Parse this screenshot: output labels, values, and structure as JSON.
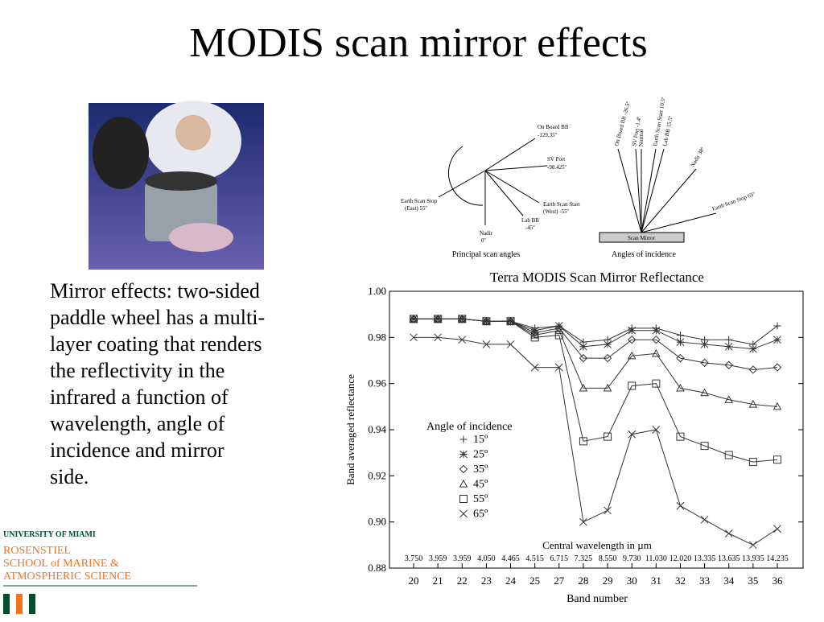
{
  "title": "MODIS scan mirror effects",
  "body_lines": [
    "Mirror effects: two-sided",
    "paddle wheel has a multi-",
    "layer coating that renders",
    "the reflectivity in the",
    "infrared a function of",
    "wavelength, angle of",
    "incidence and mirror",
    "side."
  ],
  "diagram_left": {
    "labels": [
      "On Board BB",
      "-129.35º",
      "SV Port",
      "-98.425º",
      "Earth Scan Start",
      "(West) -55º",
      "Lab BB",
      "-45º",
      "Nadir",
      "0º",
      "Earth Scan Stop",
      "(East) 55º"
    ],
    "caption": "Principal scan angles"
  },
  "diagram_right": {
    "labels": [
      "On Board BB -26.5º",
      "SV Port -1.4º",
      "Normal",
      "Earth Scan Start 10.5º",
      "Lab BB 15.5º",
      "Nadir 38º",
      "Earth Scan Stop 65º",
      "Scan Mirror"
    ],
    "caption": "Angles of incidence"
  },
  "logo": [
    "UNIVERSITY OF MIAMI",
    "ROSENSTIEL",
    "SCHOOL of MARINE &",
    "ATMOSPHERIC SCIENCE"
  ],
  "chart_data": {
    "type": "line",
    "title": "Terra MODIS Scan Mirror Reflectance",
    "x_label": "Band number",
    "y_label": "Band averaged reflectance",
    "wavelength_label": "Central wavelength in µm",
    "legend_title": "Angle of incidence",
    "categories": [
      "20",
      "21",
      "22",
      "23",
      "24",
      "25",
      "27",
      "28",
      "29",
      "30",
      "31",
      "32",
      "33",
      "34",
      "35",
      "36"
    ],
    "wavelengths": [
      "3.750",
      "3.959",
      "3.959",
      "4.050",
      "4.465",
      "4.515",
      "6.715",
      "7.325",
      "8.550",
      "9.730",
      "11.030",
      "12.020",
      "13.335",
      "13.635",
      "13.935",
      "14.235"
    ],
    "ylim": [
      0.88,
      1.0
    ],
    "yticks": [
      {
        "value": 0.88,
        "label": "0.88"
      },
      {
        "value": 0.9,
        "label": "0.90"
      },
      {
        "value": 0.92,
        "label": "0.92"
      },
      {
        "value": 0.94,
        "label": "0.94"
      },
      {
        "value": 0.96,
        "label": "0.96"
      },
      {
        "value": 0.98,
        "label": "0.98"
      },
      {
        "value": 1.0,
        "label": "1.00"
      }
    ],
    "series": [
      {
        "name": "15º",
        "color": "#333",
        "marker": "plus",
        "values": [
          0.988,
          0.988,
          0.988,
          0.987,
          0.987,
          0.984,
          0.985,
          0.978,
          0.979,
          0.984,
          0.984,
          0.981,
          0.979,
          0.979,
          0.977,
          0.985
        ]
      },
      {
        "name": "25º",
        "color": "#333",
        "marker": "star",
        "values": [
          0.988,
          0.988,
          0.988,
          0.987,
          0.987,
          0.983,
          0.985,
          0.976,
          0.977,
          0.983,
          0.983,
          0.978,
          0.977,
          0.976,
          0.975,
          0.979
        ]
      },
      {
        "name": "35º",
        "color": "#333",
        "marker": "diamond",
        "values": [
          0.988,
          0.988,
          0.988,
          0.987,
          0.987,
          0.982,
          0.984,
          0.971,
          0.971,
          0.979,
          0.979,
          0.971,
          0.969,
          0.968,
          0.966,
          0.967
        ]
      },
      {
        "name": "45º",
        "color": "#333",
        "marker": "triangle",
        "values": [
          0.988,
          0.988,
          0.988,
          0.987,
          0.987,
          0.981,
          0.983,
          0.958,
          0.958,
          0.972,
          0.973,
          0.958,
          0.956,
          0.953,
          0.951,
          0.95
        ]
      },
      {
        "name": "55º",
        "color": "#333",
        "marker": "square",
        "values": [
          0.988,
          0.988,
          0.988,
          0.987,
          0.987,
          0.98,
          0.981,
          0.935,
          0.937,
          0.959,
          0.96,
          0.937,
          0.933,
          0.929,
          0.926,
          0.927
        ]
      },
      {
        "name": "65º",
        "color": "#333",
        "marker": "cross",
        "values": [
          0.98,
          0.98,
          0.979,
          0.977,
          0.977,
          0.967,
          0.967,
          0.9,
          0.905,
          0.938,
          0.94,
          0.907,
          0.901,
          0.895,
          0.89,
          0.897
        ]
      }
    ]
  }
}
